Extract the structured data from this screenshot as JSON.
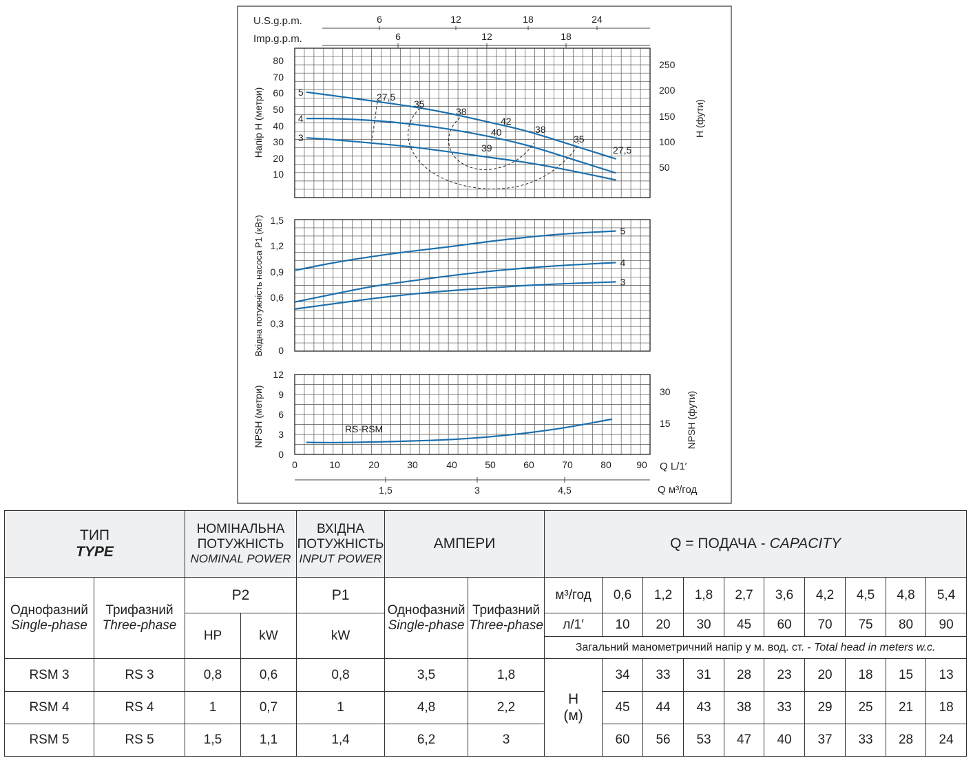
{
  "chart_data": [
    {
      "type": "line",
      "ylabel": "Напір H (метри)",
      "ylabel_right": "H (фути)",
      "ylim": [
        0,
        85
      ],
      "yticks": [
        "80",
        "70",
        "60",
        "50",
        "40",
        "30",
        "20",
        "10"
      ],
      "yticks_right": [
        "250",
        "200",
        "150",
        "100",
        "50"
      ],
      "top_axes": [
        {
          "label": "U.S.g.p.m.",
          "ticks": [
            "6",
            "12",
            "18",
            "24"
          ]
        },
        {
          "label": "Imp.g.p.m.",
          "ticks": [
            "6",
            "12",
            "18"
          ]
        }
      ],
      "series": [
        {
          "name": "5",
          "x": [
            3,
            10,
            20,
            30,
            40,
            50,
            60,
            70,
            83
          ],
          "y": [
            60,
            58,
            55,
            52,
            48,
            43,
            38,
            31,
            22
          ]
        },
        {
          "name": "4",
          "x": [
            3,
            10,
            20,
            30,
            40,
            50,
            60,
            70,
            83
          ],
          "y": [
            45,
            45,
            44,
            42,
            39,
            35,
            30,
            23,
            14
          ]
        },
        {
          "name": "3",
          "x": [
            3,
            10,
            20,
            30,
            40,
            50,
            60,
            70,
            83
          ],
          "y": [
            34,
            33,
            31,
            29,
            26,
            23,
            20,
            16,
            10
          ]
        }
      ],
      "efficiency_labels": [
        "27,5",
        "35",
        "38",
        "42",
        "40",
        "39",
        "38",
        "35",
        "27,5"
      ]
    },
    {
      "type": "line",
      "ylabel": "Вхідна потужність насоса P1 (кВт)",
      "ylim": [
        0,
        1.5
      ],
      "yticks": [
        "1,5",
        "1,2",
        "0,9",
        "0,6",
        "0,3",
        "0"
      ],
      "series": [
        {
          "name": "5",
          "x": [
            0,
            10,
            20,
            30,
            40,
            50,
            60,
            70,
            83
          ],
          "y": [
            0.92,
            1.01,
            1.08,
            1.14,
            1.19,
            1.25,
            1.3,
            1.34,
            1.37
          ]
        },
        {
          "name": "4",
          "x": [
            0,
            10,
            20,
            30,
            40,
            50,
            60,
            70,
            83
          ],
          "y": [
            0.56,
            0.65,
            0.74,
            0.8,
            0.86,
            0.91,
            0.95,
            0.98,
            1.01
          ]
        },
        {
          "name": "3",
          "x": [
            0,
            10,
            20,
            30,
            40,
            50,
            60,
            70,
            83
          ],
          "y": [
            0.48,
            0.54,
            0.6,
            0.65,
            0.69,
            0.72,
            0.75,
            0.77,
            0.79
          ]
        }
      ]
    },
    {
      "type": "line",
      "ylabel": "NPSH (метри)",
      "ylabel_right": "NPSH (фути)",
      "ylim": [
        0,
        12
      ],
      "yticks": [
        "12",
        "9",
        "6",
        "3",
        "0"
      ],
      "yticks_right": [
        "30",
        "15"
      ],
      "series": [
        {
          "name": "RS-RSM",
          "x": [
            3,
            10,
            20,
            30,
            40,
            50,
            60,
            70,
            82
          ],
          "y": [
            1.8,
            1.75,
            1.85,
            2.0,
            2.2,
            2.6,
            3.2,
            4.0,
            5.3
          ]
        }
      ],
      "xlabel": "Q L/1′",
      "xticks": [
        "0",
        "10",
        "20",
        "30",
        "40",
        "50",
        "60",
        "70",
        "80",
        "90"
      ],
      "xlabel2": "Q м³/год",
      "xticks2": [
        "1,5",
        "3",
        "4,5"
      ]
    }
  ],
  "table": {
    "type_ua": "ТИП",
    "type_en": "TYPE",
    "nominal_ua": "НОМІНАЛЬНА ПОТУЖНІСТЬ",
    "nominal_en": "NOMINAL POWER",
    "input_ua": "ВХІДНА ПОТУЖНІСТЬ",
    "input_en": "INPUT POWER",
    "amps": "АМПЕРИ",
    "capacity_ua": "Q = ПОДАЧА - ",
    "capacity_en": "CAPACITY",
    "single_ua": "Однофазний",
    "single_en": "Single-phase",
    "three_ua": "Трифазний",
    "three_en": "Three-phase",
    "p2": "P2",
    "p1": "P1",
    "hp": "HP",
    "kw": "kW",
    "unit_m3": "м³/год",
    "unit_l": "л/1′",
    "m3_values": [
      "0,6",
      "1,2",
      "1,8",
      "2,7",
      "3,6",
      "4,2",
      "4,5",
      "4,8",
      "5,4"
    ],
    "l_values": [
      "10",
      "20",
      "30",
      "45",
      "60",
      "70",
      "75",
      "80",
      "90"
    ],
    "head_note_ua": "Загальний манометричний напір у м. вод. ст. - ",
    "head_note_en": "Total head in meters w.c.",
    "h_label": "H",
    "h_unit": "(м)",
    "rows": [
      {
        "single": "RSM 3",
        "three": "RS 3",
        "hp": "0,8",
        "kw": "0,6",
        "p1": "0,8",
        "a1": "3,5",
        "a3": "1,8",
        "heads": [
          "34",
          "33",
          "31",
          "28",
          "23",
          "20",
          "18",
          "15",
          "13"
        ]
      },
      {
        "single": "RSM 4",
        "three": "RS 4",
        "hp": "1",
        "kw": "0,7",
        "p1": "1",
        "a1": "4,8",
        "a3": "2,2",
        "heads": [
          "45",
          "44",
          "43",
          "38",
          "33",
          "29",
          "25",
          "21",
          "18"
        ]
      },
      {
        "single": "RSM 5",
        "three": "RS 5",
        "hp": "1,5",
        "kw": "1,1",
        "p1": "1,4",
        "a1": "6,2",
        "a3": "3",
        "heads": [
          "60",
          "56",
          "53",
          "47",
          "40",
          "37",
          "33",
          "28",
          "24"
        ]
      }
    ]
  },
  "colors": {
    "curve": "#1b6fae",
    "grid": "#555555",
    "header_bg": "#eef0f2"
  }
}
